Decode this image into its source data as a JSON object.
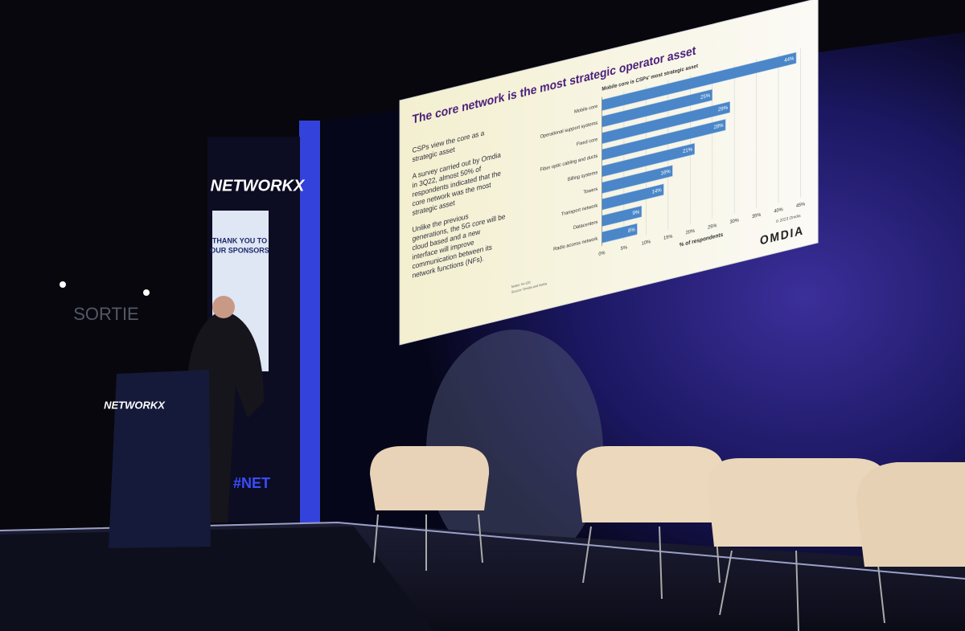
{
  "scene": {
    "venue_logo": "NETWORKX",
    "sponsor_banner": [
      "THANK YOU TO",
      "OUR SPONSORS"
    ],
    "exit_sign": "SORTIE",
    "podium_logo": "NETWORKX",
    "hashtag": "#NET"
  },
  "slide": {
    "title": "The core network is the most strategic operator asset",
    "paragraphs": [
      [
        "CSPs view the core as a",
        "strategic asset"
      ],
      [
        "A survey carried out by Omdia",
        "in 3Q22, almost 50% of",
        "respondents indicated that the",
        "core network was the most",
        "strategic asset"
      ],
      [
        "Unlike the previous",
        "generations, the 5G core will be",
        "cloud based and a new",
        "interface will improve",
        "communication between its",
        "network functions (NFs)."
      ]
    ],
    "notes": [
      "Notes: N=120",
      "Source: Omdia and Nokia"
    ],
    "logo": "OMDIA"
  },
  "chart_data": {
    "type": "barh",
    "title": "Mobile core is CSPs' most strategic asset",
    "categories": [
      "Mobile core",
      "Operational support systems",
      "Fixed core",
      "Fiber optic cabling and ducts",
      "Billing systems",
      "Towers",
      "Transport network",
      "Datacenters",
      "Radio access network"
    ],
    "values": [
      44,
      25,
      29,
      28,
      21,
      16,
      14,
      9,
      8
    ],
    "value_labels": [
      "44%",
      "25%",
      "29%",
      "28%",
      "21%",
      "16%",
      "14%",
      "9%",
      "8%"
    ],
    "color": "#4a86c8",
    "xlim": [
      0,
      45
    ],
    "xticks": [
      {
        "value": 0,
        "label": "0%"
      },
      {
        "value": 5,
        "label": "5%"
      },
      {
        "value": 10,
        "label": "10%"
      },
      {
        "value": 15,
        "label": "15%"
      },
      {
        "value": 20,
        "label": "20%"
      },
      {
        "value": 25,
        "label": "25%"
      },
      {
        "value": 30,
        "label": "30%"
      },
      {
        "value": 35,
        "label": "35%"
      },
      {
        "value": 40,
        "label": "40%"
      },
      {
        "value": 45,
        "label": "45%"
      }
    ],
    "xlabel": "% of respondents",
    "source": "© 2023 Omdia",
    "grid": true
  }
}
